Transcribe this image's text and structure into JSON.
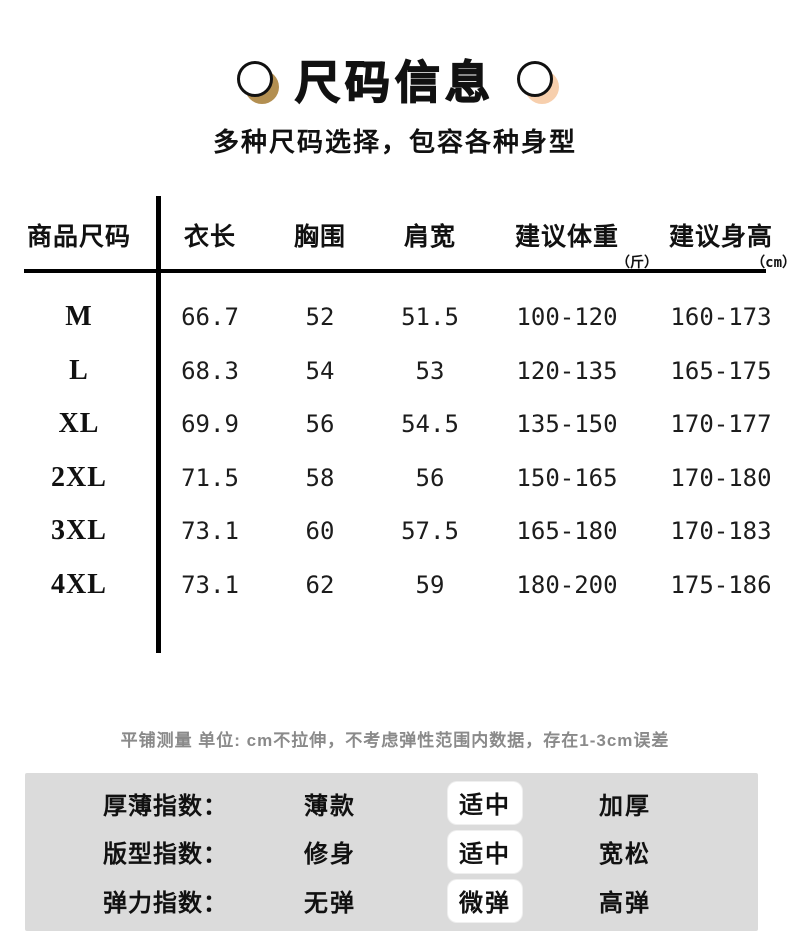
{
  "header": {
    "title": "尺码信息",
    "subtitle": "多种尺码选择，包容各种身型"
  },
  "table": {
    "columns": [
      "商品尺码",
      "衣长",
      "胸围",
      "肩宽",
      "建议体重",
      "建议身高"
    ],
    "units": {
      "weight": "（斤）",
      "height": "（cm）"
    },
    "rows": [
      {
        "size": "M",
        "length": "66.7",
        "chest": "52",
        "shoulder": "51.5",
        "weight": "100-120",
        "height": "160-173"
      },
      {
        "size": "L",
        "length": "68.3",
        "chest": "54",
        "shoulder": "53",
        "weight": "120-135",
        "height": "165-175"
      },
      {
        "size": "XL",
        "length": "69.9",
        "chest": "56",
        "shoulder": "54.5",
        "weight": "135-150",
        "height": "170-177"
      },
      {
        "size": "2XL",
        "length": "71.5",
        "chest": "58",
        "shoulder": "56",
        "weight": "150-165",
        "height": "170-180"
      },
      {
        "size": "3XL",
        "length": "73.1",
        "chest": "60",
        "shoulder": "57.5",
        "weight": "165-180",
        "height": "170-183"
      },
      {
        "size": "4XL",
        "length": "73.1",
        "chest": "62",
        "shoulder": "59",
        "weight": "180-200",
        "height": "175-186"
      }
    ]
  },
  "note": "平铺测量 单位: cm不拉伸，不考虑弹性范围内数据，存在1-3cm误差",
  "indices": [
    {
      "label": "厚薄指数：",
      "options": [
        "薄款",
        "适中",
        "加厚"
      ],
      "selected_index": 1
    },
    {
      "label": "版型指数：",
      "options": [
        "修身",
        "适中",
        "宽松"
      ],
      "selected_index": 1
    },
    {
      "label": "弹力指数：",
      "options": [
        "无弹",
        "微弹",
        "高弹"
      ],
      "selected_index": 1
    }
  ],
  "colors": {
    "text": "#111111",
    "circle_shadow_left": "#b38f51",
    "circle_shadow_right": "#f7cfad",
    "note_gray": "#8a8a8a",
    "panel_bg": "#dbdbdb",
    "selected_box_bg": "#ffffff"
  }
}
